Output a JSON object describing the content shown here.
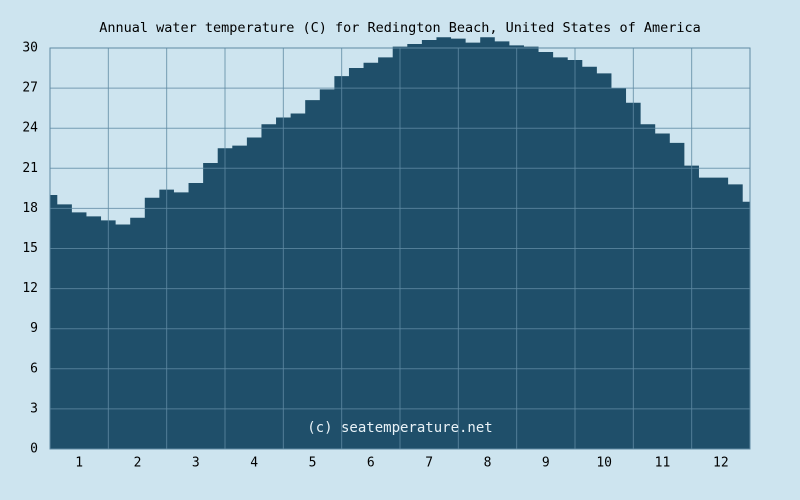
{
  "chart_data": {
    "type": "area",
    "title": "Annual water temperature (C) for Redington Beach, United States of America",
    "watermark": "(c) seatemperature.net",
    "x": [
      0.5,
      0.75,
      1.0,
      1.25,
      1.5,
      1.75,
      2.0,
      2.25,
      2.5,
      2.75,
      3.0,
      3.25,
      3.5,
      3.75,
      4.0,
      4.25,
      4.5,
      4.75,
      5.0,
      5.25,
      5.5,
      5.75,
      6.0,
      6.25,
      6.5,
      6.75,
      7.0,
      7.25,
      7.5,
      7.75,
      8.0,
      8.25,
      8.5,
      8.75,
      9.0,
      9.25,
      9.5,
      9.75,
      10.0,
      10.25,
      10.5,
      10.75,
      11.0,
      11.25,
      11.5,
      11.75,
      12.0,
      12.25,
      12.5
    ],
    "values": [
      19.0,
      18.3,
      17.7,
      17.4,
      17.1,
      16.8,
      17.3,
      18.8,
      19.4,
      19.2,
      19.9,
      21.4,
      22.5,
      22.7,
      23.3,
      24.3,
      24.8,
      25.1,
      26.1,
      26.9,
      27.9,
      28.5,
      28.9,
      29.3,
      30.1,
      30.3,
      30.6,
      30.8,
      30.7,
      30.4,
      30.8,
      30.5,
      30.2,
      30.1,
      29.7,
      29.3,
      29.1,
      28.6,
      28.1,
      27.0,
      25.9,
      24.3,
      23.6,
      22.9,
      21.2,
      20.3,
      20.3,
      19.8,
      18.5
    ],
    "color": "#1f4f6a",
    "xlim": [
      0.5,
      12.5
    ],
    "xticks": [
      1,
      2,
      3,
      4,
      5,
      6,
      7,
      8,
      9,
      10,
      11,
      12
    ],
    "ylim": [
      0,
      30
    ],
    "yticks": [
      0,
      3,
      6,
      9,
      12,
      15,
      18,
      21,
      24,
      27,
      30
    ],
    "grid": true
  }
}
